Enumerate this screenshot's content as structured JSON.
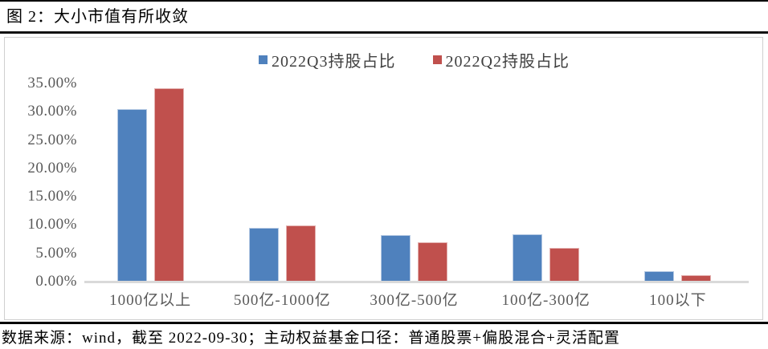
{
  "figure": {
    "title": "图 2：大小市值有所收敛",
    "source_note": "数据来源：wind，截至 2022-09-30；主动权益基金口径：普通股票+偏股混合+灵活配置"
  },
  "colors": {
    "series_q3_blue": "#4F81BD",
    "series_q2_red": "#C0504D",
    "axis_line": "#d9d9d9",
    "axis_text": "#595959"
  },
  "chart_data": {
    "type": "bar",
    "title": "图 2：大小市值有所收敛",
    "categories": [
      "1000亿以上",
      "500亿-1000亿",
      "300亿-500亿",
      "100亿-300亿",
      "100以下"
    ],
    "series": [
      {
        "name": "2022Q3持股占比",
        "color": "#4F81BD",
        "values": [
          30.4,
          9.5,
          8.2,
          8.3,
          1.8
        ]
      },
      {
        "name": "2022Q2持股占比",
        "color": "#C0504D",
        "values": [
          34.2,
          9.9,
          7.0,
          5.9,
          1.2
        ]
      }
    ],
    "xlabel": "",
    "ylabel": "",
    "ylim": [
      0,
      35
    ],
    "y_tick_step": 5,
    "y_tick_labels": [
      "0.00%",
      "5.00%",
      "10.00%",
      "15.00%",
      "20.00%",
      "25.00%",
      "30.00%",
      "35.00%"
    ],
    "grid": false,
    "legend_position": "top-center"
  }
}
